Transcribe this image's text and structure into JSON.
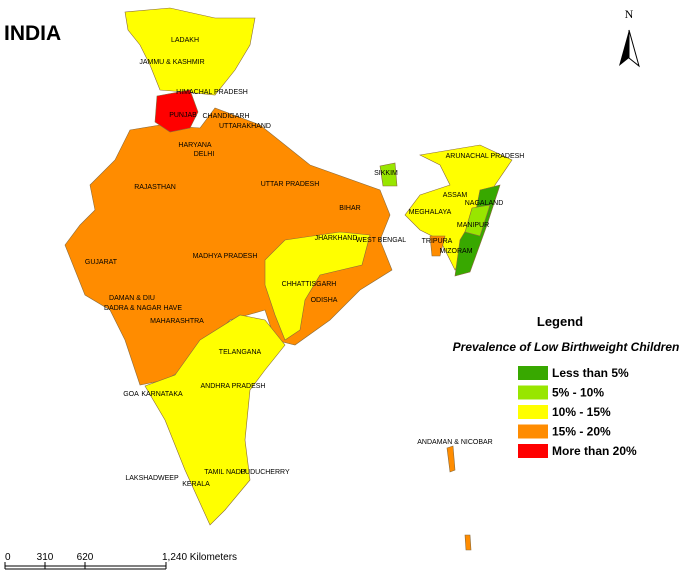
{
  "header": {
    "title": "INDIA",
    "north": "N"
  },
  "map": {
    "labels": [
      "LADAKH",
      "JAMMU & KASHMIR",
      "HIMACHAL PRADESH",
      "PUNJAB",
      "CHANDIGARH",
      "UTTARAKHAND",
      "HARYANA",
      "DELHI",
      "RAJASTHAN",
      "UTTAR PRADESH",
      "BIHAR",
      "SIKKIM",
      "ARUNACHAL PRADESH",
      "ASSAM",
      "NAGALAND",
      "MEGHALAYA",
      "MANIPUR",
      "TRIPURA",
      "MIZORAM",
      "JHARKHAND",
      "WEST BENGAL",
      "GUJARAT",
      "MADHYA PRADESH",
      "CHHATTISGARH",
      "ODISHA",
      "DAMAN & DIU",
      "DADRA & NAGAR HAVE",
      "MAHARASHTRA",
      "TELANGANA",
      "ANDHRA PRADESH",
      "GOA",
      "KARNATAKA",
      "ANDAMAN & NICOBAR",
      "LAKSHADWEEP",
      "TAMIL NADU",
      "PUDUCHERRY",
      "KERALA"
    ]
  },
  "legend": {
    "title": "Legend",
    "subtitle": "Prevalence of Low Birthweight Children",
    "items": [
      {
        "label": "Less than 5%",
        "color": "#38a800"
      },
      {
        "label": "5% - 10%",
        "color": "#98e600"
      },
      {
        "label": "10% - 15%",
        "color": "#ffff00"
      },
      {
        "label": "15% - 20%",
        "color": "#ff8c00"
      },
      {
        "label": "More than 20%",
        "color": "#ff0000"
      }
    ]
  },
  "scale_bar": {
    "labels": [
      "0",
      "310",
      "620",
      "1,240 Kilometers"
    ]
  }
}
